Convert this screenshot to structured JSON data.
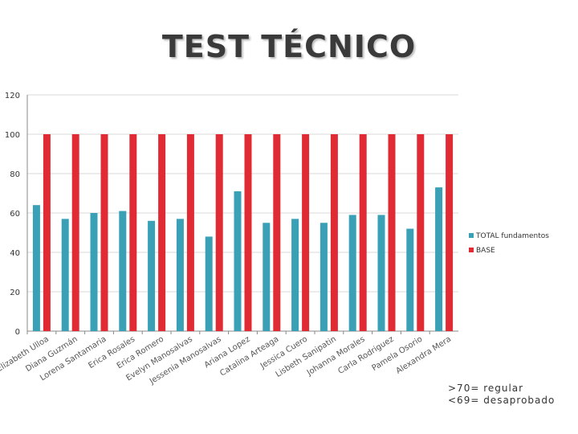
{
  "title": "TEST TÉCNICO",
  "note": {
    "line1": ">70= regular",
    "line2": "<69= desaprobado"
  },
  "colors": {
    "total": "#39a0b6",
    "base": "#e02b35",
    "grid": "#d9d9d9",
    "axis": "#888888"
  },
  "chart_data": {
    "type": "bar",
    "ylim": [
      0,
      120
    ],
    "yticks": [
      0,
      20,
      40,
      60,
      80,
      100,
      120
    ],
    "grid": true,
    "legend_position": "right",
    "categories": [
      "Elizabeth Ulloa",
      "Diana Guzmán",
      "Lorena Santamaria",
      "Erica Rosales",
      "Erica Romero",
      "Evelyn Manosalvas",
      "Jessenia Manosalvas",
      "Ariana Lopez",
      "Catalina Arteaga",
      "Jessica Cuero",
      "Lisbeth Sanipatin",
      "Johanna Morales",
      "Carla Rodriguez",
      "Pamela Osorio",
      "Alexandra Mera"
    ],
    "series": [
      {
        "name": "TOTAL fundamentos",
        "color": "#39a0b6",
        "values": [
          64,
          57,
          60,
          61,
          56,
          57,
          48,
          71,
          55,
          57,
          55,
          59,
          59,
          52,
          73
        ]
      },
      {
        "name": "BASE",
        "color": "#e02b35",
        "values": [
          100,
          100,
          100,
          100,
          100,
          100,
          100,
          100,
          100,
          100,
          100,
          100,
          100,
          100,
          100
        ]
      }
    ]
  }
}
